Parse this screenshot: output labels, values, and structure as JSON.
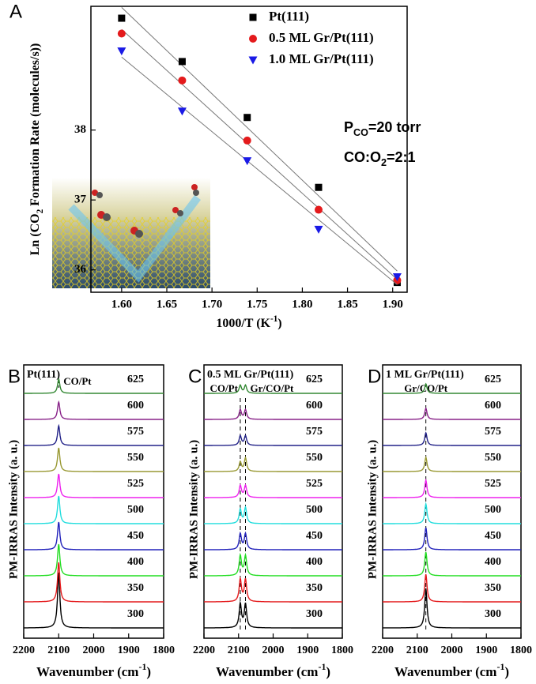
{
  "chart_data": [
    {
      "panel_label": "A",
      "type": "scatter",
      "x": [
        1.6,
        1.667,
        1.739,
        1.818,
        1.905
      ],
      "series": [
        {
          "name": "Pt(111)",
          "color": "#000000",
          "marker": "square",
          "values": [
            39.6,
            38.98,
            38.18,
            37.18,
            35.82
          ]
        },
        {
          "name": "0.5 ML Gr/Pt(111)",
          "color": "#e41a1c",
          "marker": "circle",
          "values": [
            39.38,
            38.71,
            37.85,
            36.86,
            35.85
          ]
        },
        {
          "name": "1.0 ML Gr/Pt(111)",
          "color": "#1a1ae6",
          "marker": "triangle-down",
          "values": [
            39.13,
            38.27,
            37.56,
            36.58,
            35.9
          ]
        }
      ],
      "xlim": [
        1.566,
        1.916
      ],
      "ylim": [
        35.68,
        39.77
      ],
      "xticks": [
        {
          "value": 1.6,
          "label": "1.60"
        },
        {
          "value": 1.65,
          "label": "1.65"
        },
        {
          "value": 1.7,
          "label": "1.70"
        },
        {
          "value": 1.75,
          "label": "1.75"
        },
        {
          "value": 1.8,
          "label": "1.80"
        },
        {
          "value": 1.85,
          "label": "1.85"
        },
        {
          "value": 1.9,
          "label": "1.90"
        }
      ],
      "yticks": [
        36,
        37,
        38
      ],
      "xlabel": {
        "main": "1000/T (K",
        "sup": "-1",
        "end": ")"
      },
      "ylabel": {
        "main": "Ln (CO",
        "sub": "2",
        "end": " Formation Rate (molecules/s))"
      },
      "annotations": [
        {
          "main": "P",
          "sub": "CO",
          "end": "=20 torr"
        },
        {
          "main": "CO:O",
          "sub": "2",
          "end": "=2:1"
        }
      ],
      "fit_lines": true
    },
    {
      "panel_label": "B",
      "type": "spectra",
      "inset_title": "Pt(111)",
      "xlim": [
        2200,
        1800
      ],
      "xticks": [
        2200,
        2100,
        2000,
        1900,
        1800
      ],
      "xlabel": {
        "main": "Wavenumber (cm",
        "sup": "-1",
        "end": ")"
      },
      "ylabel": "PM-IRRAS Intensity (a. u.)",
      "peaks": [
        2100
      ],
      "peak_labels": [
        "CO/Pt"
      ],
      "dashed_peaks": false,
      "series": [
        {
          "name": "300",
          "color": "#000000",
          "heights": [
            70
          ]
        },
        {
          "name": "350",
          "color": "#e41a1c",
          "heights": [
            50
          ]
        },
        {
          "name": "400",
          "color": "#22dd22",
          "heights": [
            40
          ]
        },
        {
          "name": "450",
          "color": "#2222bb",
          "heights": [
            35
          ]
        },
        {
          "name": "500",
          "color": "#22dddd",
          "heights": [
            35
          ]
        },
        {
          "name": "525",
          "color": "#ee22ee",
          "heights": [
            30
          ]
        },
        {
          "name": "550",
          "color": "#999933",
          "heights": [
            30
          ]
        },
        {
          "name": "575",
          "color": "#222288",
          "heights": [
            25
          ]
        },
        {
          "name": "600",
          "color": "#882288",
          "heights": [
            22
          ]
        },
        {
          "name": "625",
          "color": "#338833",
          "heights": [
            18
          ]
        }
      ]
    },
    {
      "panel_label": "C",
      "type": "spectra",
      "inset_title": "0.5 ML Gr/Pt(111)",
      "xlim": [
        2200,
        1800
      ],
      "xticks": [
        2200,
        2100,
        2000,
        1900,
        1800
      ],
      "xlabel": {
        "main": "Wavenumber (cm",
        "sup": "-1",
        "end": ")"
      },
      "ylabel": "PM-IRRAS Intensity (a. u.)",
      "peaks": [
        2095,
        2080
      ],
      "peak_labels": [
        "CO/Pt",
        "Gr/CO/Pt"
      ],
      "dashed_peaks": true,
      "series": [
        {
          "name": "300",
          "color": "#000000",
          "heights": [
            30,
            30
          ]
        },
        {
          "name": "350",
          "color": "#e41a1c",
          "heights": [
            28,
            28
          ]
        },
        {
          "name": "400",
          "color": "#22dd22",
          "heights": [
            25,
            25
          ]
        },
        {
          "name": "450",
          "color": "#2222bb",
          "heights": [
            20,
            20
          ]
        },
        {
          "name": "500",
          "color": "#22dddd",
          "heights": [
            18,
            20
          ]
        },
        {
          "name": "525",
          "color": "#ee22ee",
          "heights": [
            15,
            15
          ]
        },
        {
          "name": "550",
          "color": "#999933",
          "heights": [
            12,
            17
          ]
        },
        {
          "name": "575",
          "color": "#222288",
          "heights": [
            12,
            12
          ]
        },
        {
          "name": "600",
          "color": "#882288",
          "heights": [
            12,
            12
          ]
        },
        {
          "name": "625",
          "color": "#338833",
          "heights": [
            10,
            10
          ]
        }
      ]
    },
    {
      "panel_label": "D",
      "type": "spectra",
      "inset_title": "1 ML Gr/Pt(111)",
      "xlim": [
        2200,
        1800
      ],
      "xticks": [
        2200,
        2100,
        2000,
        1900,
        1800
      ],
      "xlabel": {
        "main": "Wavenumber (cm",
        "sup": "-1",
        "end": ")"
      },
      "ylabel": "PM-IRRAS Intensity (a. u.)",
      "peaks": [
        2075
      ],
      "peak_labels": [
        "Gr/CO/Pt"
      ],
      "dashed_peaks": true,
      "series": [
        {
          "name": "300",
          "color": "#000000",
          "heights": [
            50
          ]
        },
        {
          "name": "350",
          "color": "#e41a1c",
          "heights": [
            35
          ]
        },
        {
          "name": "400",
          "color": "#22dd22",
          "heights": [
            30
          ]
        },
        {
          "name": "450",
          "color": "#2222bb",
          "heights": [
            28
          ]
        },
        {
          "name": "500",
          "color": "#22dddd",
          "heights": [
            25
          ]
        },
        {
          "name": "525",
          "color": "#ee22ee",
          "heights": [
            22
          ]
        },
        {
          "name": "550",
          "color": "#999933",
          "heights": [
            18
          ]
        },
        {
          "name": "575",
          "color": "#222288",
          "heights": [
            16
          ]
        },
        {
          "name": "600",
          "color": "#882288",
          "heights": [
            14
          ]
        },
        {
          "name": "625",
          "color": "#338833",
          "heights": [
            12
          ]
        }
      ]
    }
  ]
}
